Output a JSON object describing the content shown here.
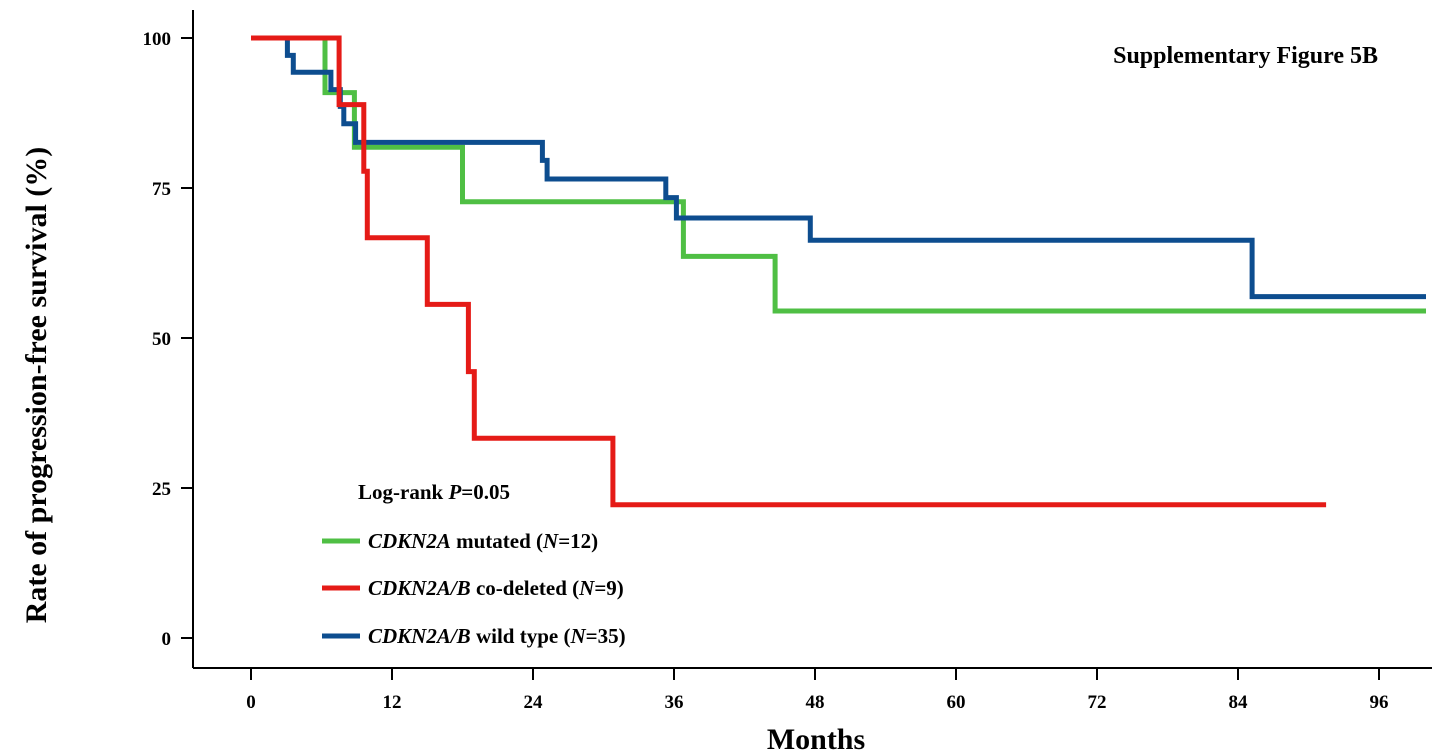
{
  "chart_data": {
    "type": "line",
    "subtype": "kaplan-meier step",
    "figure_label": "Supplementary Figure 5B",
    "xlabel": "Months",
    "ylabel": "Rate of progression-free survival (%)",
    "xlim": [
      0,
      100
    ],
    "ylim": [
      0,
      100
    ],
    "xticks": [
      0,
      12,
      24,
      36,
      48,
      60,
      72,
      84,
      96
    ],
    "yticks": [
      0,
      25,
      50,
      75,
      100
    ],
    "grid": false,
    "annotation": {
      "prefix": "Log-rank ",
      "italic": "P",
      "suffix": "=0.05"
    },
    "legend_position": "bottom-left",
    "series": [
      {
        "name": "CDKN2A mutated (N=12)",
        "legend": [
          {
            "text": "CDKN2A",
            "italic": true
          },
          {
            "text": " mutated (",
            "italic": false
          },
          {
            "text": "N",
            "italic": true
          },
          {
            "text": "=12)",
            "italic": false
          }
        ],
        "color": "#4fbf44",
        "points": [
          [
            0,
            100
          ],
          [
            6.3,
            100
          ],
          [
            6.3,
            90.9
          ],
          [
            8.8,
            90.9
          ],
          [
            8.8,
            81.8
          ],
          [
            18,
            81.8
          ],
          [
            18,
            72.7
          ],
          [
            36.8,
            72.7
          ],
          [
            36.8,
            63.6
          ],
          [
            44.6,
            63.6
          ],
          [
            44.6,
            54.5
          ],
          [
            100,
            54.5
          ]
        ]
      },
      {
        "name": "CDKN2A/B co-deleted (N=9)",
        "legend": [
          {
            "text": "CDKN2A/B",
            "italic": true
          },
          {
            "text": " co-deleted (",
            "italic": false
          },
          {
            "text": "N",
            "italic": true
          },
          {
            "text": "=9)",
            "italic": false
          }
        ],
        "color": "#e51b17",
        "points": [
          [
            0,
            100
          ],
          [
            7.5,
            100
          ],
          [
            7.5,
            88.9
          ],
          [
            9.6,
            88.9
          ],
          [
            9.6,
            77.8
          ],
          [
            9.9,
            77.8
          ],
          [
            9.9,
            66.7
          ],
          [
            15,
            66.7
          ],
          [
            15,
            55.6
          ],
          [
            18.5,
            55.6
          ],
          [
            18.5,
            44.4
          ],
          [
            19,
            44.4
          ],
          [
            19,
            33.3
          ],
          [
            30.8,
            33.3
          ],
          [
            30.8,
            22.2
          ],
          [
            91.5,
            22.2
          ]
        ]
      },
      {
        "name": "CDKN2A/B wild type (N=35)",
        "legend": [
          {
            "text": "CDKN2A/B",
            "italic": true
          },
          {
            "text": " wild type (",
            "italic": false
          },
          {
            "text": "N",
            "italic": true
          },
          {
            "text": "=35)",
            "italic": false
          }
        ],
        "color": "#0d4d8f",
        "points": [
          [
            0,
            100
          ],
          [
            3.1,
            100
          ],
          [
            3.1,
            97.1
          ],
          [
            3.6,
            97.1
          ],
          [
            3.6,
            94.3
          ],
          [
            6.8,
            94.3
          ],
          [
            6.8,
            91.4
          ],
          [
            7.6,
            91.4
          ],
          [
            7.6,
            88.6
          ],
          [
            7.9,
            88.6
          ],
          [
            7.9,
            85.7
          ],
          [
            8.9,
            85.7
          ],
          [
            8.9,
            82.6
          ],
          [
            24.8,
            82.6
          ],
          [
            24.8,
            79.6
          ],
          [
            25.2,
            79.6
          ],
          [
            25.2,
            76.5
          ],
          [
            35.3,
            76.5
          ],
          [
            35.3,
            73.4
          ],
          [
            36.2,
            73.4
          ],
          [
            36.2,
            70
          ],
          [
            47.6,
            70
          ],
          [
            47.6,
            66.3
          ],
          [
            85.2,
            66.3
          ],
          [
            85.2,
            56.9
          ],
          [
            100,
            56.9
          ]
        ]
      }
    ]
  }
}
